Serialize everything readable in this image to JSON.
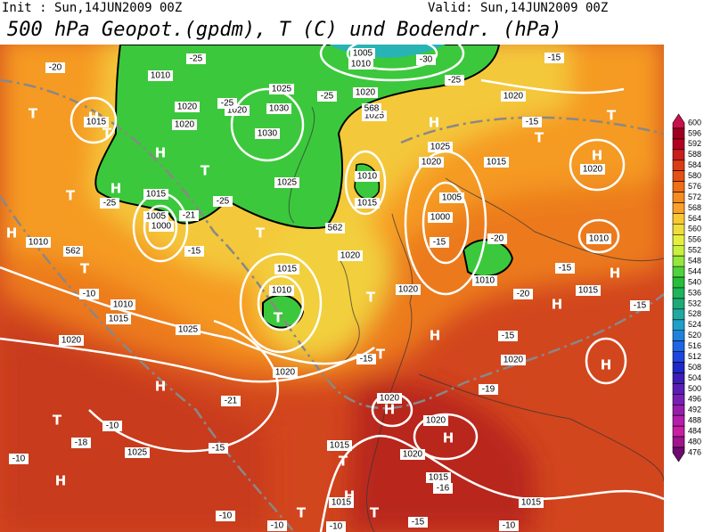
{
  "header": {
    "init": "Init : Sun,14JUN2009 00Z",
    "valid": "Valid: Sun,14JUN2009 00Z",
    "title": "500 hPa Geopot.(gpdm), T (C) und Bodendr. (hPa)"
  },
  "colorbar": {
    "ticks": [
      600,
      596,
      592,
      588,
      584,
      580,
      576,
      572,
      568,
      564,
      560,
      556,
      552,
      548,
      544,
      540,
      536,
      532,
      528,
      524,
      520,
      516,
      512,
      508,
      504,
      500,
      496,
      492,
      488,
      484,
      480,
      476
    ],
    "colors": [
      "#c8104a",
      "#a00020",
      "#b4001e",
      "#c81e1e",
      "#dc3c14",
      "#e65014",
      "#f06e14",
      "#f58c1e",
      "#faa028",
      "#fac832",
      "#f0dc3c",
      "#e6f03c",
      "#c8f03c",
      "#96e63c",
      "#50d23c",
      "#28be3c",
      "#1eb45a",
      "#1eaa78",
      "#1eaaa0",
      "#1ea0c8",
      "#1e82dc",
      "#1e64e6",
      "#1e46dc",
      "#1e28c8",
      "#3c1eb4",
      "#5a1eb4",
      "#781eb4",
      "#961eaa",
      "#b41eaa",
      "#c81ea0",
      "#a0148c",
      "#6e0a6e"
    ]
  },
  "map_labels": [
    "H",
    "H",
    "H",
    "H",
    "H",
    "H",
    "H",
    "H",
    "H",
    "H",
    "H",
    "H",
    "H",
    "H",
    "H",
    "T",
    "T",
    "T",
    "T",
    "T",
    "T",
    "T",
    "T",
    "T",
    "T",
    "T",
    "T",
    "T",
    "T",
    "T",
    "1015",
    "1010",
    "1020",
    "1020",
    "1015",
    "1005",
    "1000",
    "1010",
    "1010",
    "1015",
    "1020",
    "1025",
    "1015",
    "1010",
    "1020",
    "1020",
    "1025",
    "1030",
    "1030",
    "1025",
    "1020",
    "1020",
    "1025",
    "1005",
    "1010",
    "1015",
    "1025",
    "1020",
    "1015",
    "1005",
    "1000",
    "1010",
    "1020",
    "1015",
    "1010",
    "1020",
    "1020",
    "1020",
    "1020",
    "1020",
    "1020",
    "1015",
    "1015",
    "1015",
    "1015",
    "1025",
    "1010",
    "-20",
    "-25",
    "-25",
    "-25",
    "-25",
    "-25",
    "-30",
    "-21",
    "-15",
    "-10",
    "-15",
    "-20",
    "-15",
    "-15",
    "-19",
    "-21",
    "-10",
    "-18",
    "-10",
    "-15",
    "-10",
    "-10",
    "-10",
    "-15",
    "-10",
    "-16",
    "-15",
    "-15",
    "-20",
    "-25",
    "-15",
    "-15",
    "562",
    "562",
    "568"
  ]
}
